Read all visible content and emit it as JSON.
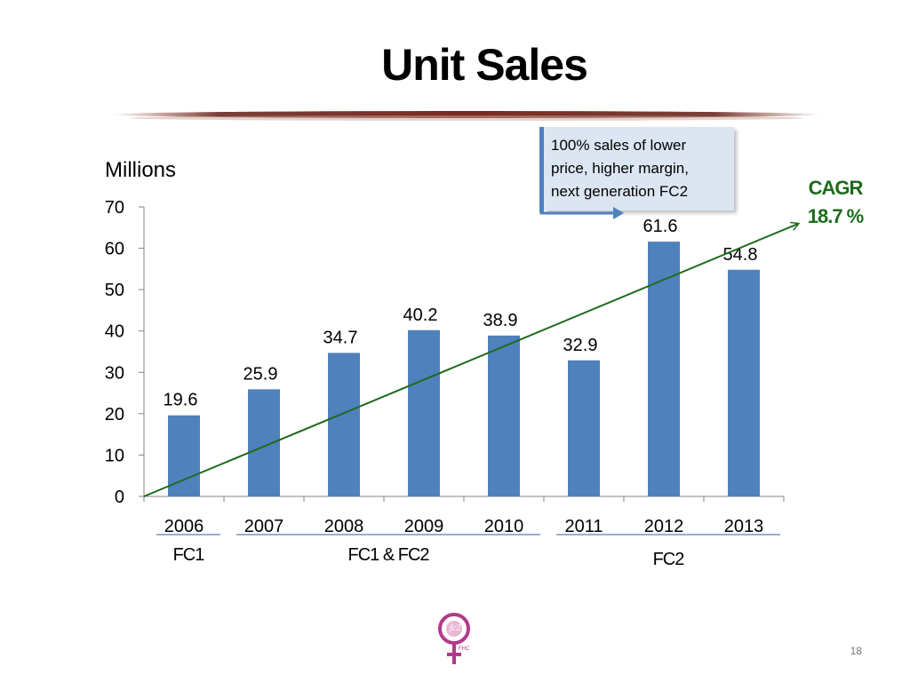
{
  "slide": {
    "title": "Unit Sales",
    "page_number": "18"
  },
  "callout": {
    "lines": [
      "100% sales of lower",
      "price, higher margin,",
      "next generation FC2"
    ]
  },
  "cagr": {
    "label": "CAGR",
    "value": "18.7 %"
  },
  "colors": {
    "bar": "#4f81bd",
    "trend": "#1d6b1d",
    "callout_bg": "#dce6f2",
    "group_rule": "#4f81bd"
  },
  "chart_data": {
    "type": "bar",
    "ylabel": "Millions",
    "categories": [
      "2006",
      "2007",
      "2008",
      "2009",
      "2010",
      "2011",
      "2012",
      "2013"
    ],
    "values": [
      19.6,
      25.9,
      34.7,
      40.2,
      38.9,
      32.9,
      61.6,
      54.8
    ],
    "data_labels": [
      "19.6",
      "25.9",
      "34.7",
      "40.2",
      "38.9",
      "32.9",
      "61.6",
      "54.8"
    ],
    "ylim": [
      0,
      70
    ],
    "yticks": [
      0,
      10,
      20,
      30,
      40,
      50,
      60,
      70
    ],
    "grid": false,
    "trend_line": {
      "from": 0,
      "to": 70
    },
    "category_groups": [
      {
        "label": "FC1",
        "from": "2006",
        "to": "2006"
      },
      {
        "label": "FC1 & FC2",
        "from": "2007",
        "to": "2010"
      },
      {
        "label": "FC2",
        "from": "2011",
        "to": "2013"
      }
    ]
  }
}
